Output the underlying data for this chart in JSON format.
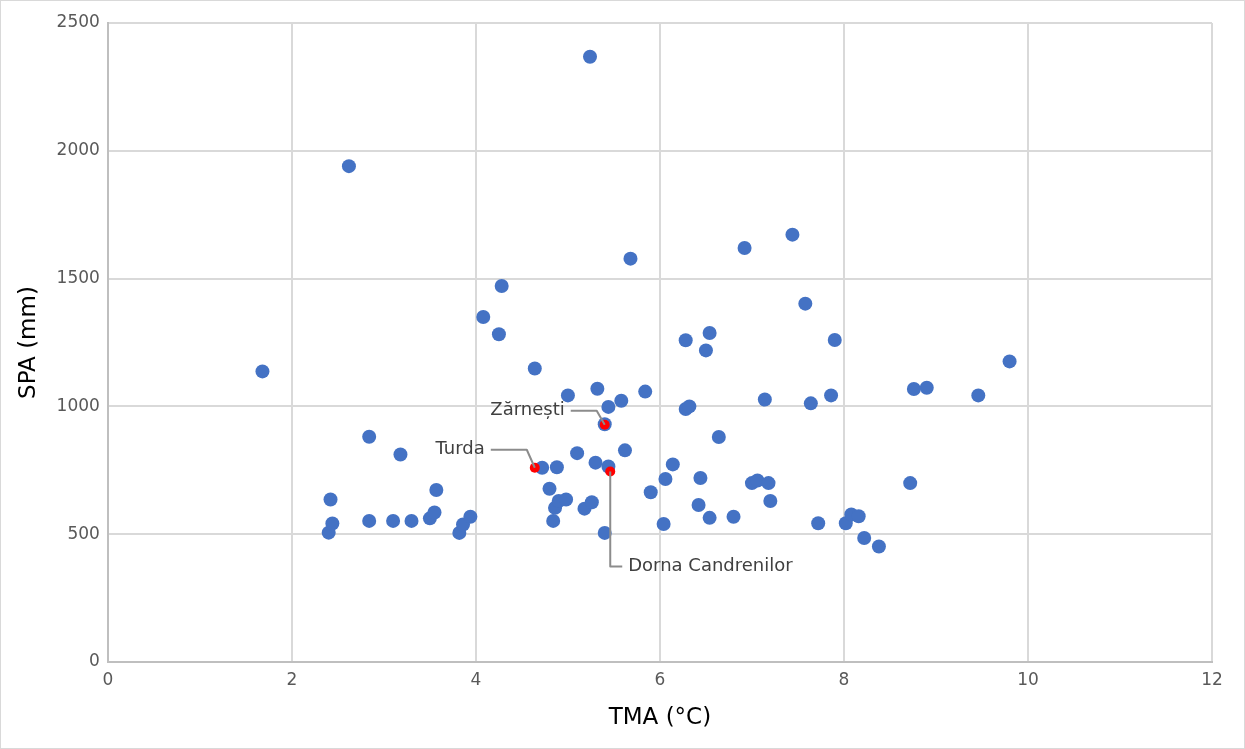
{
  "chart_data": {
    "type": "scatter",
    "xlabel": "TMA (°C)",
    "ylabel": "SPA (mm)",
    "xlim": [
      0,
      12
    ],
    "xticks": [
      0,
      2,
      4,
      6,
      8,
      10,
      12
    ],
    "ylim": [
      0,
      2500
    ],
    "yticks": [
      0,
      500,
      1000,
      1500,
      2000,
      2500
    ],
    "grid": true,
    "legend": false,
    "marker": "circle",
    "series": [
      {
        "color": "#4472c4",
        "x": [
          1.68,
          2.62,
          5.24,
          2.4,
          2.42,
          2.44,
          2.84,
          2.84,
          3.1,
          3.18,
          3.3,
          3.5,
          3.55,
          3.57,
          3.82,
          3.86,
          3.94,
          4.08,
          4.25,
          4.28,
          4.64,
          4.72,
          4.8,
          4.84,
          4.86,
          4.88,
          4.9,
          4.98,
          5.0,
          5.1,
          5.18,
          5.26,
          5.3,
          5.32,
          5.4,
          5.4,
          5.44,
          5.44,
          5.58,
          5.62,
          5.68,
          5.84,
          5.9,
          6.04,
          6.06,
          6.14,
          6.28,
          6.28,
          6.32,
          6.42,
          6.44,
          6.5,
          6.54,
          6.54,
          6.64,
          6.8,
          6.92,
          7.0,
          7.06,
          7.14,
          7.18,
          7.2,
          7.44,
          7.58,
          7.64,
          7.72,
          7.86,
          7.9,
          8.02,
          8.08,
          8.16,
          8.22,
          8.38,
          8.72,
          8.76,
          8.9,
          9.46,
          9.8
        ],
        "values": [
          1137,
          1940,
          2368,
          506,
          636,
          542,
          552,
          881,
          552,
          812,
          552,
          562,
          585,
          673,
          505,
          538,
          568,
          1350,
          1282,
          1471,
          1148,
          760,
          678,
          552,
          603,
          762,
          630,
          636,
          1043,
          817,
          600,
          625,
          780,
          1069,
          505,
          930,
          998,
          765,
          1022,
          828,
          1578,
          1058,
          664,
          540,
          716,
          773,
          990,
          1259,
          1000,
          614,
          720,
          1219,
          564,
          1287,
          880,
          568,
          1620,
          700,
          710,
          1027,
          700,
          630,
          1672,
          1402,
          1012,
          543,
          1043,
          1260,
          543,
          577,
          570,
          485,
          452,
          700,
          1068,
          1073,
          1043,
          1176
        ]
      },
      {
        "color": "#ff0000",
        "x": [
          4.64,
          5.4,
          5.46
        ],
        "values": [
          760,
          928,
          745
        ]
      }
    ],
    "annotations": [
      {
        "text": "Turda",
        "x": 4.64,
        "y": 760
      },
      {
        "text": "Zărnești",
        "x": 5.4,
        "y": 928
      },
      {
        "text": "Dorna Candrenilor",
        "x": 5.46,
        "y": 745
      }
    ]
  }
}
